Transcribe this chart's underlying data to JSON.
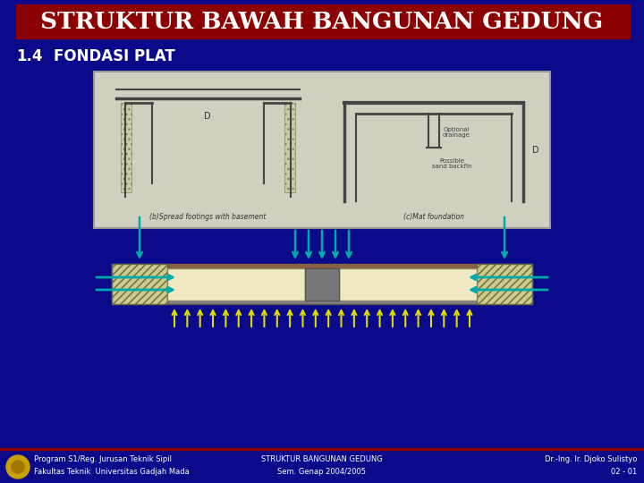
{
  "bg_color": "#0a0a8a",
  "title_text": "STRUKTUR BAWAH BANGUNAN GEDUNG",
  "title_bg": "#8b0000",
  "title_text_color": "#ffffff",
  "subtitle_number": "1.4",
  "subtitle_text": "FONDASI PLAT",
  "subtitle_color": "#ffffff",
  "footer_line_color": "#8b0000",
  "footer_left1": "Program S1/Reg. Jurusan Teknik Sipil",
  "footer_left2": "Fakultas Teknik  Universitas Gadjah Mada",
  "footer_center1": "STRUKTUR BANGUNAN GEDUNG",
  "footer_center2": "Sem. Genap 2004/2005",
  "footer_right1": "Dr.-Ing. Ir. Djoko Sulistyo",
  "footer_right2": "02 - 01",
  "footer_color": "#ffffff",
  "slab_color": "#f0e8c0",
  "hatch_color": "#cccc88",
  "outer_slab_color": "#808080",
  "wall_color": "#808080",
  "arrow_color": "#00aaaa",
  "arrow_up_color": "#dddd00",
  "top_brown": "#8b6040"
}
